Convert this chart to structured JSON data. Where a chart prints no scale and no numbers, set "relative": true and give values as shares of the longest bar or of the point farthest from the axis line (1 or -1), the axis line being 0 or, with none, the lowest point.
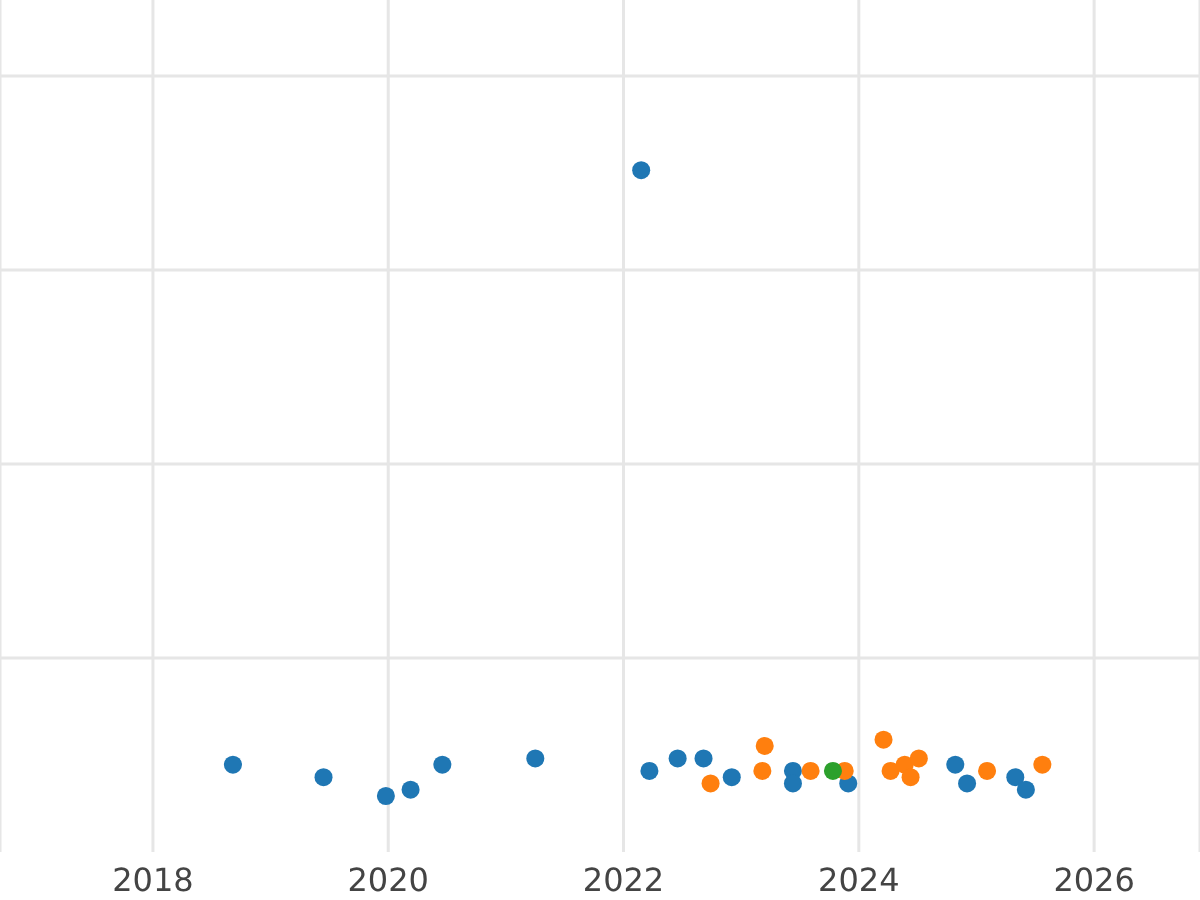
{
  "chart_data": {
    "type": "scatter",
    "relative": true,
    "grid": true,
    "marker": "circle",
    "xlim": [
      2016.7,
      2026.9
    ],
    "xticks": [
      2018,
      2020,
      2022,
      2024,
      2026
    ],
    "series": [
      {
        "color": "#1f77b4",
        "x": [
          2018.68,
          2019.45,
          2019.98,
          2020.19,
          2020.46,
          2021.25,
          2022.15,
          2022.22,
          2022.46,
          2022.68,
          2022.92,
          2023.44,
          2023.44,
          2023.91,
          2024.82,
          2024.92,
          2025.33,
          2025.42
        ],
        "values": [
          0.05,
          0.03,
          0,
          0.01,
          0.05,
          0.06,
          1,
          0.04,
          0.06,
          0.06,
          0.03,
          0.04,
          0.02,
          0.02,
          0.05,
          0.02,
          0.03,
          0.01
        ]
      },
      {
        "color": "#ff7f0e",
        "x": [
          2022.74,
          2023.18,
          2023.2,
          2023.59,
          2023.88,
          2024.21,
          2024.27,
          2024.39,
          2024.44,
          2024.51,
          2025.09,
          2025.56
        ],
        "values": [
          0.02,
          0.04,
          0.08,
          0.04,
          0.04,
          0.09,
          0.04,
          0.05,
          0.03,
          0.06,
          0.04,
          0.05
        ]
      },
      {
        "color": "#2ca02c",
        "x": [
          2023.78
        ],
        "values": [
          0.04
        ]
      }
    ]
  }
}
